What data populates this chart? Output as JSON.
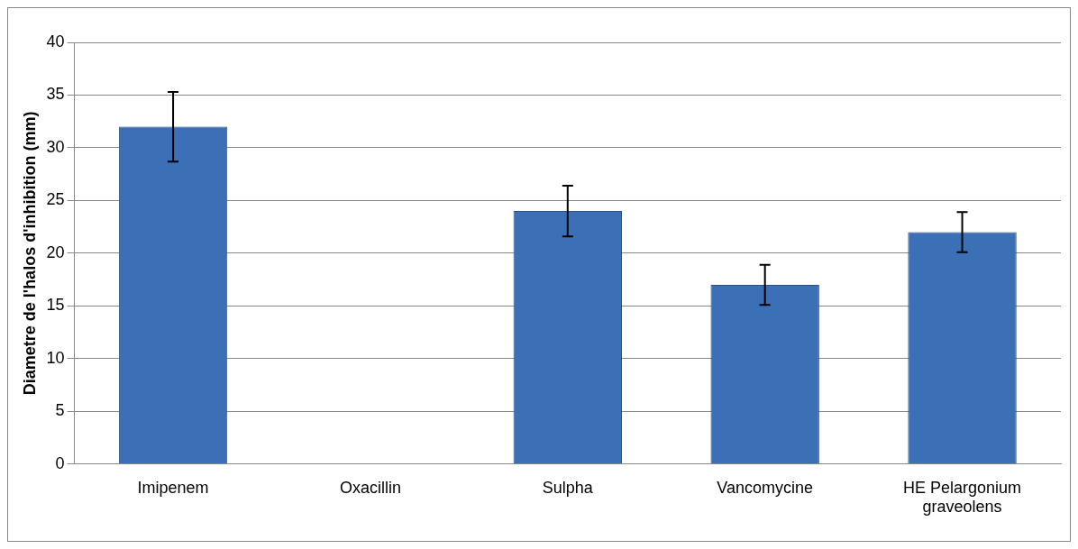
{
  "chart_data": {
    "type": "bar",
    "ylabel": "Diametre de l'halos d'inhibition (mm)",
    "categories": [
      "Imipenem",
      "Oxacillin",
      "Sulpha",
      "Vancomycine",
      "HE Pelargonium graveolens"
    ],
    "values": [
      32,
      0,
      24,
      17,
      22
    ],
    "errors": [
      3.3,
      null,
      2.4,
      1.9,
      1.9
    ],
    "color": "#3b6fb6",
    "ylim": [
      0,
      40
    ],
    "yticks": [
      0,
      5,
      10,
      15,
      20,
      25,
      30,
      35,
      40
    ],
    "grid": "y"
  }
}
